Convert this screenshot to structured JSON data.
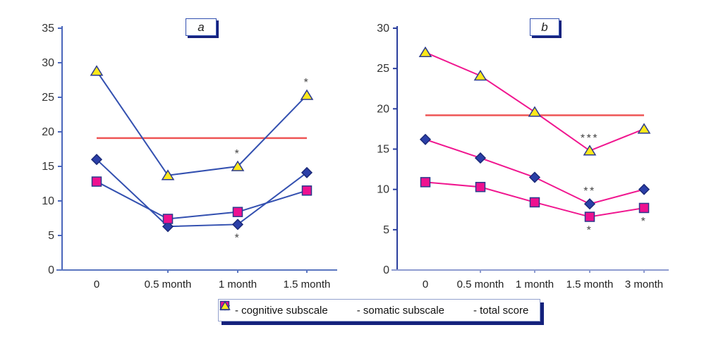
{
  "figure": {
    "background": "#ffffff",
    "panel_titles": {
      "a": "a",
      "b": "b"
    }
  },
  "legend": {
    "items": [
      {
        "key": "cognitive-subscale",
        "marker": "diamond",
        "label": "- cognitive subscale"
      },
      {
        "key": "somatic-subscale",
        "marker": "square",
        "label": "- somatic subscale"
      },
      {
        "key": "total-score",
        "marker": "triangle",
        "label": "- total score"
      }
    ]
  },
  "style": {
    "marker_colors": {
      "diamond": {
        "fill": "#2b3fa8",
        "stroke": "#1b2a78"
      },
      "square": {
        "fill": "#ee1190",
        "stroke": "#2b3a8c"
      },
      "triangle": {
        "fill": "#ffe81a",
        "stroke": "#2b3a8c"
      }
    },
    "tick_text_color": "#333333",
    "annotation_color": "#444444",
    "reference_line_color": "#ee5555"
  },
  "chart_data": [
    {
      "type": "line",
      "title": "a",
      "categories": [
        "0",
        "0.5 month",
        "1 month",
        "1.5 month"
      ],
      "ylim": [
        0,
        35
      ],
      "ytick_step": 5,
      "grid": false,
      "legend_position": "bottom-shared",
      "line_color": "#3350b0",
      "axis_color": "#4a66bb",
      "xaxis_color": "#5b76c0",
      "reference_line": {
        "value": 19.1
      },
      "series": [
        {
          "name": "cognitive subscale",
          "marker": "diamond",
          "values": [
            16,
            6.3,
            6.6,
            14.1
          ]
        },
        {
          "name": "somatic subscale",
          "marker": "square",
          "values": [
            12.8,
            7.4,
            8.4,
            11.5
          ]
        },
        {
          "name": "total score",
          "marker": "triangle",
          "values": [
            28.8,
            13.7,
            15,
            25.3
          ]
        }
      ],
      "annotations": [
        {
          "text": "*",
          "series": "total score",
          "index": 2,
          "position": "above"
        },
        {
          "text": "*",
          "series": "total score",
          "index": 3,
          "position": "above"
        },
        {
          "text": "*",
          "series": "cognitive subscale",
          "index": 2,
          "position": "below"
        }
      ]
    },
    {
      "type": "line",
      "title": "b",
      "categories": [
        "0",
        "0.5 month",
        "1 month",
        "1.5 month",
        "3 month"
      ],
      "ylim": [
        0,
        30
      ],
      "ytick_step": 5,
      "grid": false,
      "legend_position": "bottom-shared",
      "line_color": "#f0168f",
      "axis_color": "#2b3f9e",
      "xaxis_color": "#8e9cd0",
      "reference_line": {
        "value": 19.2
      },
      "series": [
        {
          "name": "cognitive subscale",
          "marker": "diamond",
          "values": [
            16.2,
            13.9,
            11.5,
            8.2,
            10
          ]
        },
        {
          "name": "somatic subscale",
          "marker": "square",
          "values": [
            10.9,
            10.3,
            8.4,
            6.6,
            7.7
          ]
        },
        {
          "name": "total score",
          "marker": "triangle",
          "values": [
            27,
            24.1,
            19.6,
            14.8,
            17.5
          ]
        }
      ],
      "annotations": [
        {
          "text": "***",
          "series": "total score",
          "index": 3,
          "position": "above"
        },
        {
          "text": "**",
          "series": "cognitive subscale",
          "index": 3,
          "position": "above"
        },
        {
          "text": "*",
          "series": "somatic subscale",
          "index": 3,
          "position": "below"
        },
        {
          "text": "*",
          "series": "somatic subscale",
          "index": 4,
          "position": "below"
        }
      ]
    }
  ]
}
